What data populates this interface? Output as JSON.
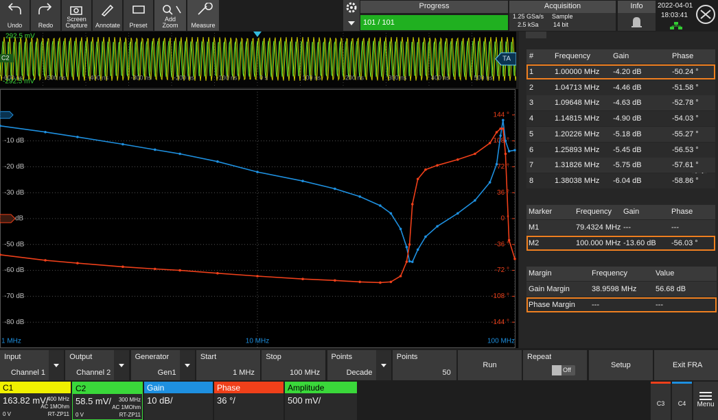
{
  "toolbar": {
    "buttons": [
      "Undo",
      "Redo",
      "Screen Capture",
      "Annotate",
      "Preset",
      "Add Zoom",
      "Measure"
    ]
  },
  "progress": {
    "title": "Progress",
    "value": "101 / 101"
  },
  "acquisition": {
    "title": "Acquisition",
    "sample_rate": "1.25 GSa/s",
    "record_length": "2.5 kSa",
    "mode": "Sample",
    "resolution": "14 bit"
  },
  "info": {
    "title": "Info"
  },
  "clock": {
    "date": "2022-04-01",
    "time": "18:03:41"
  },
  "overview": {
    "top_label": "292.5 mV",
    "bottom_label": "-292.5 mV",
    "channel_badge": "C2",
    "trigger_badge": "TA",
    "time_labels": [
      "-600 ns",
      "-500 ns",
      "-400 ns",
      "-300 ns",
      "-200 ns",
      "-100 ns",
      "0 s",
      "100 ns",
      "200 ns",
      "300 ns",
      "400 ns",
      "500 ns",
      "600 ns"
    ]
  },
  "chart_data": {
    "type": "line",
    "log_x": true,
    "grid": true,
    "x": [
      1,
      1.5,
      2,
      3,
      4,
      5,
      7,
      10,
      15,
      20,
      25,
      30,
      33,
      36,
      38,
      39,
      40,
      42,
      45,
      50,
      60,
      70,
      80,
      85,
      88,
      90,
      92,
      95,
      100
    ],
    "xlim": [
      1,
      100
    ],
    "xticks": [
      {
        "value": 1,
        "label": "1 MHz"
      },
      {
        "value": 10,
        "label": "10 MHz"
      },
      {
        "value": 100,
        "label": "100 MHz"
      }
    ],
    "ylim": [
      -90,
      10
    ],
    "yticks": [
      {
        "value": -10,
        "label": "-10 dB"
      },
      {
        "value": -20,
        "label": "-20 dB"
      },
      {
        "value": -30,
        "label": "-30 dB"
      },
      {
        "value": -40,
        "label": "dB"
      },
      {
        "value": -50,
        "label": "-50 dB"
      },
      {
        "value": -60,
        "label": "-60 dB"
      },
      {
        "value": -70,
        "label": "-70 dB"
      },
      {
        "value": -80,
        "label": "-80 dB"
      }
    ],
    "y2lim": [
      -180,
      180
    ],
    "y2ticks": [
      {
        "value": 144,
        "label": "144 °"
      },
      {
        "value": 108,
        "label": "108 °"
      },
      {
        "value": 72,
        "label": "72 °"
      },
      {
        "value": 36,
        "label": "36 °"
      },
      {
        "value": 0,
        "label": "0 °"
      },
      {
        "value": -36,
        "label": "-36 °"
      },
      {
        "value": -72,
        "label": "-72 °"
      },
      {
        "value": -108,
        "label": "-108 °"
      },
      {
        "value": -144,
        "label": "-144 °"
      }
    ],
    "series": [
      {
        "color": "#1e90e0",
        "values": [
          -4.2,
          -6.6,
          -8.5,
          -11.3,
          -13.4,
          -15,
          -18,
          -22,
          -25.5,
          -28.5,
          -31.5,
          -35,
          -38,
          -44,
          -51,
          -56.5,
          -56.7,
          -52,
          -47,
          -43,
          -38,
          -33,
          -26,
          -19,
          -8,
          -2,
          -10,
          -14,
          -13.6
        ]
      },
      {
        "color": "#f0401a",
        "axis": "y2",
        "values": [
          -50.24,
          -58,
          -62,
          -67,
          -70,
          -72,
          -76,
          -80,
          -84,
          -86,
          -88,
          -89,
          -88,
          -80,
          -60,
          -36,
          20,
          55,
          68,
          74,
          82,
          90,
          105,
          120,
          125,
          125,
          90,
          -30,
          -56.03
        ]
      }
    ]
  },
  "results_table": {
    "columns": [
      "#",
      "Frequency",
      "Gain",
      "Phase"
    ],
    "rows": [
      [
        "1",
        "1.00000 MHz",
        "-4.20 dB",
        "-50.24 °"
      ],
      [
        "2",
        "1.04713 MHz",
        "-4.46 dB",
        "-51.58 °"
      ],
      [
        "3",
        "1.09648 MHz",
        "-4.63 dB",
        "-52.78 °"
      ],
      [
        "4",
        "1.14815 MHz",
        "-4.90 dB",
        "-54.03 °"
      ],
      [
        "5",
        "1.20226 MHz",
        "-5.18 dB",
        "-55.27 °"
      ],
      [
        "6",
        "1.25893 MHz",
        "-5.45 dB",
        "-56.53 °"
      ],
      [
        "7",
        "1.31826 MHz",
        "-5.75 dB",
        "-57.61 °"
      ],
      [
        "8",
        "1.38038 MHz",
        "-6.04 dB",
        "-58.86 °"
      ]
    ]
  },
  "marker_table": {
    "columns": [
      "Marker",
      "Frequency",
      "Gain",
      "Phase"
    ],
    "rows": [
      [
        "M1",
        "79.4324 MHz",
        "---",
        "---"
      ],
      [
        "M2",
        "100.000 MHz",
        "-13.60 dB",
        "-56.03 °"
      ]
    ]
  },
  "margin_table": {
    "columns": [
      "Margin",
      "Frequency",
      "Value"
    ],
    "rows": [
      [
        "Gain Margin",
        "38.9598 MHz",
        "56.68 dB"
      ],
      [
        "Phase Margin",
        "---",
        "---"
      ]
    ]
  },
  "controls": [
    {
      "label": "Input",
      "value": "Channel 1"
    },
    {
      "label": "Output",
      "value": "Channel 2"
    },
    {
      "label": "Generator",
      "value": "Gen1"
    },
    {
      "label": "Start",
      "value": "1 MHz"
    },
    {
      "label": "Stop",
      "value": "100 MHz"
    },
    {
      "label": "Points",
      "value": "Decade"
    },
    {
      "label": "Points",
      "value": "50"
    }
  ],
  "buttons": {
    "run": "Run",
    "repeat": "Repeat",
    "repeat_state": "Off",
    "setup": "Setup",
    "exit": "Exit FRA"
  },
  "channels": [
    {
      "name": "C1",
      "color": "#f0f000",
      "scale": "163.82 mV/",
      "bandwidth": "400 MHz",
      "coupling": "AC 1MOhm",
      "offset": "0 V",
      "probe": "RT-ZP11"
    },
    {
      "name": "C2",
      "color": "#3ad83a",
      "scale": "58.5 mV/",
      "bandwidth": "300 MHz",
      "coupling": "AC 1MOhm",
      "offset": "0 V",
      "probe": "RT-ZP11"
    },
    {
      "name": "Gain",
      "color": "#1e90e0",
      "scale": "10 dB/"
    },
    {
      "name": "Phase",
      "color": "#f0401a",
      "scale": "36 °/"
    },
    {
      "name": "Amplitude",
      "color": "#3ad83a",
      "scale": "500 mV/"
    }
  ],
  "side": {
    "c3": "C3",
    "c4": "C4",
    "menu": "Menu"
  }
}
